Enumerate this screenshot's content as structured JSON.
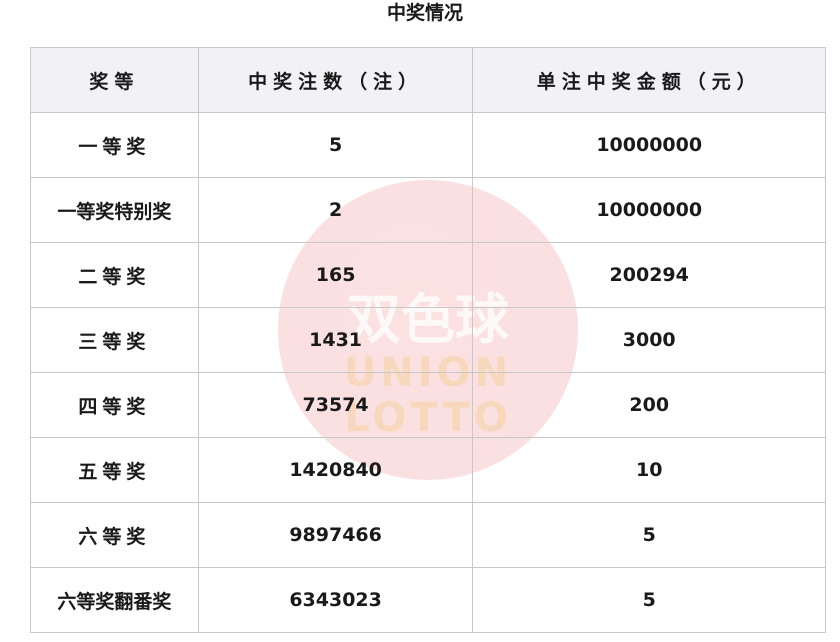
{
  "title": "中奖情况",
  "watermark": {
    "chinese": "双色球",
    "english1": "UNION",
    "english2": "LOTTO"
  },
  "headers": [
    "奖等",
    "中奖注数（注）",
    "单注中奖金额（元）"
  ],
  "rows": [
    [
      "一等奖",
      "5",
      "10000000"
    ],
    [
      "一等奖特别奖",
      "2",
      "10000000"
    ],
    [
      "二等奖",
      "165",
      "200294"
    ],
    [
      "三等奖",
      "1431",
      "3000"
    ],
    [
      "四等奖",
      "73574",
      "200"
    ],
    [
      "五等奖",
      "1420840",
      "10"
    ],
    [
      "六等奖",
      "9897466",
      "5"
    ],
    [
      "六等奖翻番奖",
      "6343023",
      "5"
    ]
  ]
}
